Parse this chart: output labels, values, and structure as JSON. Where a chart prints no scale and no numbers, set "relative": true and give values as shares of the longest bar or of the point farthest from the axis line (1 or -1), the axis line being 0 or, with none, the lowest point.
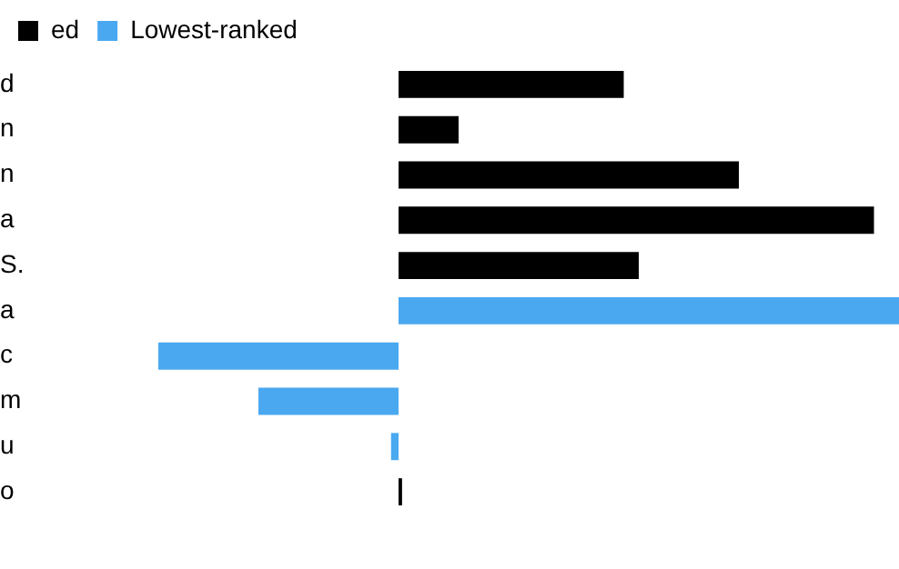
{
  "chart_data": {
    "type": "bar",
    "orientation": "horizontal",
    "stacked": true,
    "relative": true,
    "legend": "top left",
    "categories": [
      "d",
      "n",
      "n",
      "a",
      "S.",
      "a",
      "c",
      "m",
      "u",
      "o"
    ],
    "series": [
      {
        "name": "ed",
        "color": "#000000",
        "values": [
          0.45,
          0.12,
          0.68,
          0.95,
          0.48,
          null,
          null,
          null,
          null,
          0.007
        ]
      },
      {
        "name": "Lowest-ranked",
        "color": "#4aa8f0",
        "values": [
          null,
          null,
          null,
          null,
          null,
          1,
          -0.48,
          -0.28,
          -0.015,
          null
        ]
      }
    ]
  }
}
